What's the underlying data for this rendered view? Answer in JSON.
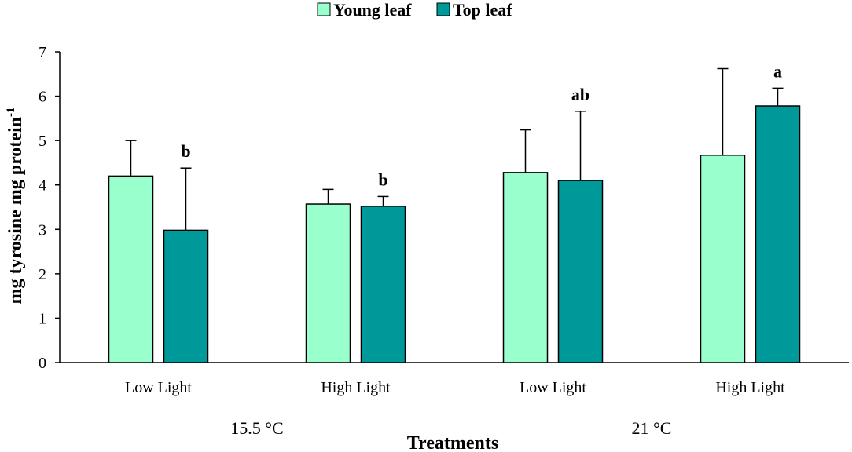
{
  "chart_data": {
    "type": "bar",
    "title": "",
    "xlabel": "Treatments",
    "ylabel": "mg tyrosine mg protein",
    "ylabel_superscript": "-1",
    "ylim": [
      0,
      7
    ],
    "yticks": [
      0,
      1,
      2,
      3,
      4,
      5,
      6,
      7
    ],
    "categories": [
      "Low Light",
      "High Light",
      "Low Light",
      "High Light"
    ],
    "groups": [
      {
        "label": "15.5 °C",
        "categories": [
          0,
          1
        ]
      },
      {
        "label": "21 °C",
        "categories": [
          2,
          3
        ]
      }
    ],
    "series": [
      {
        "name": "Young leaf",
        "color": "#99FFCC",
        "values": [
          4.2,
          3.57,
          4.28,
          4.67
        ],
        "errors": [
          0.8,
          0.33,
          0.96,
          1.95
        ]
      },
      {
        "name": "Top leaf",
        "color": "#009999",
        "values": [
          2.98,
          3.52,
          4.1,
          5.78
        ],
        "errors": [
          1.4,
          0.22,
          1.56,
          0.4
        ]
      }
    ],
    "annotations": [
      {
        "series": 1,
        "category": 0,
        "text": "b"
      },
      {
        "series": 1,
        "category": 1,
        "text": "b"
      },
      {
        "series": 1,
        "category": 2,
        "text": "ab"
      },
      {
        "series": 1,
        "category": 3,
        "text": "a"
      }
    ],
    "legend_position": "top-center",
    "grid": false
  }
}
